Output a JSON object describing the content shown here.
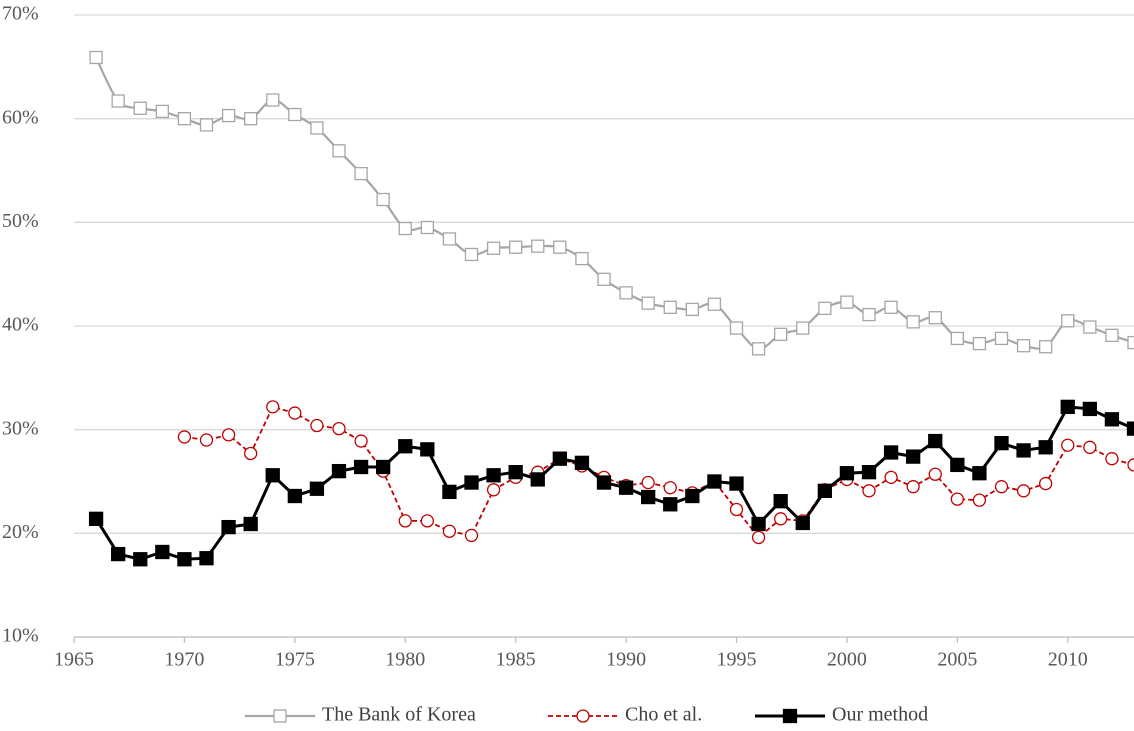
{
  "chart_data": {
    "type": "line",
    "xlim": [
      1965,
      2013
    ],
    "xticks": [
      1965,
      1970,
      1975,
      1980,
      1985,
      1990,
      1995,
      2000,
      2005,
      2010
    ],
    "ylim": [
      10,
      70
    ],
    "yticks": [
      {
        "value": 10,
        "label": "10%"
      },
      {
        "value": 20,
        "label": "20%"
      },
      {
        "value": 30,
        "label": "30%"
      },
      {
        "value": 40,
        "label": "40%"
      },
      {
        "value": 50,
        "label": "50%"
      },
      {
        "value": 60,
        "label": "60%"
      },
      {
        "value": 70,
        "label": "70%"
      }
    ],
    "grid": true,
    "legend": "bottom",
    "series": [
      {
        "name": "The Bank of Korea",
        "color": "#a6a6a6",
        "marker": "square-open",
        "dashed": false,
        "smooth": true,
        "x": [
          1966,
          1967,
          1968,
          1969,
          1970,
          1971,
          1972,
          1973,
          1974,
          1975,
          1976,
          1977,
          1978,
          1979,
          1980,
          1981,
          1982,
          1983,
          1984,
          1985,
          1986,
          1987,
          1988,
          1989,
          1990,
          1991,
          1992,
          1993,
          1994,
          1995,
          1996,
          1997,
          1998,
          1999,
          2000,
          2001,
          2002,
          2003,
          2004,
          2005,
          2006,
          2007,
          2008,
          2009,
          2010,
          2011,
          2012,
          2013
        ],
        "values": [
          65.9,
          61.7,
          61.0,
          60.7,
          60.0,
          59.4,
          60.3,
          60.0,
          61.8,
          60.4,
          59.1,
          56.9,
          54.7,
          52.2,
          49.4,
          49.5,
          48.4,
          46.9,
          47.5,
          47.6,
          47.7,
          47.6,
          46.5,
          44.5,
          43.2,
          42.2,
          41.8,
          41.6,
          42.1,
          39.8,
          37.8,
          39.2,
          39.8,
          41.7,
          42.3,
          41.1,
          41.8,
          40.4,
          40.8,
          38.8,
          38.3,
          38.8,
          38.1,
          38.0,
          40.5,
          39.9,
          39.1,
          38.4
        ]
      },
      {
        "name": "Cho et al.",
        "color": "#c00000",
        "marker": "circle-open",
        "dashed": true,
        "smooth": false,
        "x": [
          1970,
          1971,
          1972,
          1973,
          1974,
          1975,
          1976,
          1977,
          1978,
          1979,
          1980,
          1981,
          1982,
          1983,
          1984,
          1985,
          1986,
          1987,
          1988,
          1989,
          1990,
          1991,
          1992,
          1993,
          1994,
          1995,
          1996,
          1997,
          1998,
          1999,
          2000,
          2001,
          2002,
          2003,
          2004,
          2005,
          2006,
          2007,
          2008,
          2009,
          2010,
          2011,
          2012,
          2013
        ],
        "values": [
          29.3,
          29.0,
          29.5,
          27.7,
          32.2,
          31.6,
          30.4,
          30.1,
          28.9,
          26.0,
          21.2,
          21.2,
          20.2,
          19.8,
          24.2,
          25.4,
          25.9,
          27.2,
          26.5,
          25.4,
          24.6,
          24.9,
          24.4,
          23.9,
          25.0,
          22.3,
          19.6,
          21.4,
          21.2,
          24.2,
          25.2,
          24.1,
          25.4,
          24.5,
          25.7,
          23.3,
          23.2,
          24.5,
          24.1,
          24.8,
          28.5,
          28.3,
          27.2,
          26.6
        ]
      },
      {
        "name": "Our method",
        "color": "#000000",
        "marker": "square-filled",
        "dashed": false,
        "smooth": false,
        "x": [
          1966,
          1967,
          1968,
          1969,
          1970,
          1971,
          1972,
          1973,
          1974,
          1975,
          1976,
          1977,
          1978,
          1979,
          1980,
          1981,
          1982,
          1983,
          1984,
          1985,
          1986,
          1987,
          1988,
          1989,
          1990,
          1991,
          1992,
          1993,
          1994,
          1995,
          1996,
          1997,
          1998,
          1999,
          2000,
          2001,
          2002,
          2003,
          2004,
          2005,
          2006,
          2007,
          2008,
          2009,
          2010,
          2011,
          2012,
          2013
        ],
        "values": [
          21.4,
          18.0,
          17.5,
          18.2,
          17.5,
          17.6,
          20.6,
          20.9,
          25.6,
          23.6,
          24.3,
          26.0,
          26.4,
          26.4,
          28.4,
          28.1,
          24.0,
          24.9,
          25.6,
          25.9,
          25.2,
          27.2,
          26.8,
          24.9,
          24.4,
          23.5,
          22.8,
          23.6,
          25.0,
          24.8,
          20.9,
          23.1,
          21.0,
          24.1,
          25.8,
          25.9,
          27.8,
          27.4,
          28.9,
          26.6,
          25.8,
          28.7,
          28.0,
          28.3,
          32.2,
          32.0,
          31.0,
          30.1
        ]
      }
    ]
  }
}
